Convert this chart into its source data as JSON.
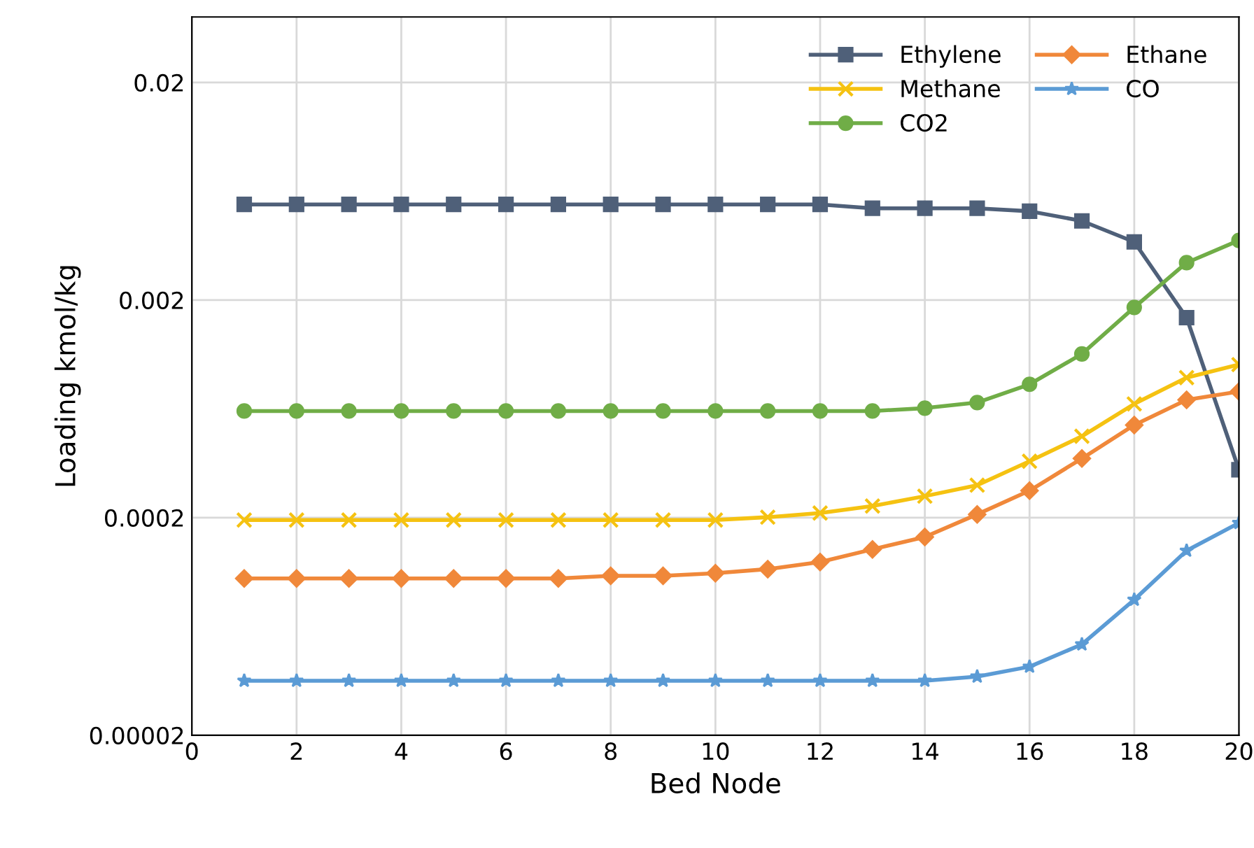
{
  "chart_data": {
    "type": "line",
    "xlabel": "Bed Node",
    "ylabel": "Loading kmol/kg",
    "log": "y",
    "x": [
      1,
      2,
      3,
      4,
      5,
      6,
      7,
      8,
      9,
      10,
      11,
      12,
      13,
      14,
      15,
      16,
      17,
      18,
      19,
      20
    ],
    "xlim": [
      0,
      20
    ],
    "xticks": [
      0,
      2,
      4,
      6,
      8,
      10,
      12,
      14,
      16,
      18,
      20
    ],
    "ylim": [
      2e-05,
      0.04
    ],
    "yticks": [
      {
        "value": 2e-05,
        "label": "0.00002"
      },
      0.0002,
      0.002,
      0.02
    ],
    "grid": true,
    "legend": "top right",
    "series": [
      {
        "name": "Ethylene",
        "color": "#4f6079",
        "marker": "square",
        "values": [
          0.0055,
          0.0055,
          0.0055,
          0.0055,
          0.0055,
          0.0055,
          0.0055,
          0.0055,
          0.0055,
          0.0055,
          0.0055,
          0.0055,
          0.00528,
          0.00528,
          0.00528,
          0.00512,
          0.00462,
          0.0037,
          0.00166,
          0.000332
        ]
      },
      {
        "name": "Ethane",
        "color": "#f0883a",
        "marker": "diamond",
        "values": [
          0.000105,
          0.000105,
          0.000105,
          0.000105,
          0.000105,
          0.000105,
          0.000105,
          0.000108,
          0.000108,
          0.000111,
          0.000116,
          0.000125,
          0.000143,
          0.000163,
          0.000207,
          0.000266,
          0.000374,
          0.000533,
          0.000696,
          0.00076
        ]
      },
      {
        "name": "Methane",
        "color": "#f5c211",
        "marker": "cross",
        "values": [
          0.000195,
          0.000195,
          0.000195,
          0.000195,
          0.000195,
          0.000195,
          0.000195,
          0.000195,
          0.000195,
          0.000195,
          0.000201,
          0.00021,
          0.000226,
          0.000251,
          0.000282,
          0.000363,
          0.000473,
          0.000666,
          0.00088,
          0.00101
        ]
      },
      {
        "name": "CO",
        "color": "#5b9bd5",
        "marker": "star",
        "values": [
          3.56e-05,
          3.56e-05,
          3.56e-05,
          3.56e-05,
          3.56e-05,
          3.56e-05,
          3.56e-05,
          3.56e-05,
          3.56e-05,
          3.56e-05,
          3.56e-05,
          3.56e-05,
          3.56e-05,
          3.56e-05,
          3.72e-05,
          4.13e-05,
          5.23e-05,
          8.39e-05,
          0.000141,
          0.000189
        ]
      },
      {
        "name": "CO2",
        "color": "#70ad47",
        "marker": "circle",
        "values": [
          0.000618,
          0.000618,
          0.000618,
          0.000618,
          0.000618,
          0.000618,
          0.000618,
          0.000618,
          0.000618,
          0.000618,
          0.000618,
          0.000618,
          0.000618,
          0.000637,
          0.000676,
          0.00082,
          0.00113,
          0.00185,
          0.00297,
          0.00376
        ]
      }
    ]
  }
}
